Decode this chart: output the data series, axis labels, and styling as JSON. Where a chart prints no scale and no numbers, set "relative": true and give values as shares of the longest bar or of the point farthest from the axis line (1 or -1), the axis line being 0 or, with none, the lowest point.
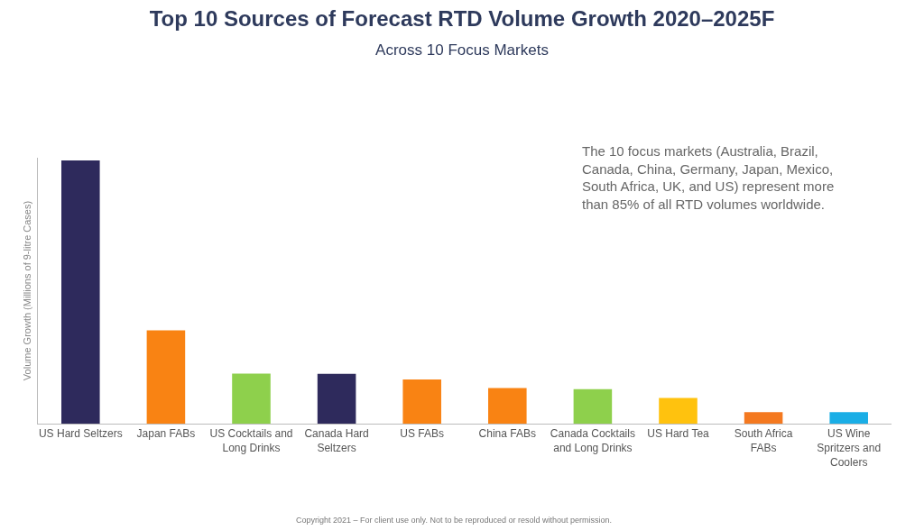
{
  "chart_data": {
    "type": "bar",
    "relative": true,
    "title": "Top 10 Sources of Forecast RTD Volume Growth 2020–2025F",
    "subtitle": "Across 10 Focus Markets",
    "ylabel": "Volume Growth (Millions of 9-litre Cases)",
    "categories": [
      "US Hard Seltzers",
      "Japan FABs",
      "US Cocktails and Long Drinks",
      "Canada Hard Seltzers",
      "US FABs",
      "China FABs",
      "Canada Cocktails and Long Drinks",
      "US Hard Tea",
      "South Africa FABs",
      "US Wine Spritzers and Coolers"
    ],
    "values": [
      1,
      0.354,
      0.19,
      0.189,
      0.168,
      0.135,
      0.131,
      0.098,
      0.044,
      0.044
    ],
    "colors": [
      "#2e2a5c",
      "#f98313",
      "#8ed04c",
      "#2e2a5c",
      "#f98313",
      "#f98313",
      "#8ed04c",
      "#ffc20e",
      "#f47920",
      "#1aaee6"
    ],
    "annotations": [
      "The 10 focus markets (Australia, Brazil, Canada, China, Germany, Japan, Mexico, South Africa, UK, and US) represent more than 85% of all RTD volumes worldwide.",
      "Copyright 2021 – For client use only. Not to be reproduced or resold without permission."
    ]
  }
}
